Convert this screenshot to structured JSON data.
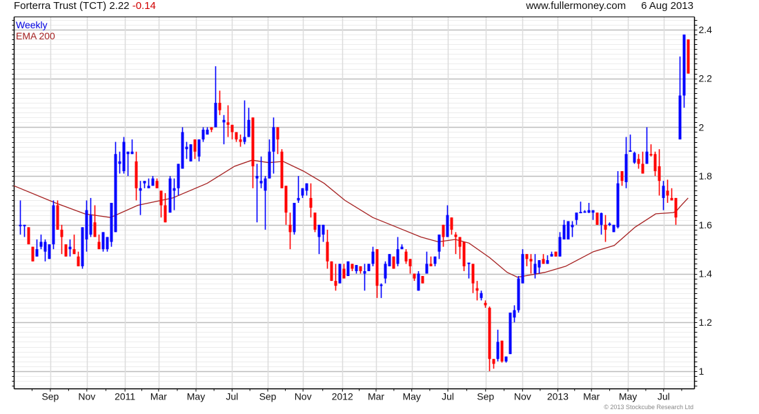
{
  "header": {
    "title": "Forterra Trust (TCT) 2.22",
    "change": "-0.14",
    "site": "www.fullermoney.com",
    "date": "6 Aug 2013"
  },
  "footer": "© 2013 Stockcube Research Ltd",
  "chart_data": {
    "type": "candlestick",
    "title": "Forterra Trust (TCT)",
    "legend": [
      {
        "name": "Weekly",
        "color": "#0000e0"
      },
      {
        "name": "EMA 200",
        "color": "#a52020"
      }
    ],
    "legend_placement": "top-left",
    "colors": {
      "up": "#0000ff",
      "down": "#ff0000",
      "ema": "#a52020"
    },
    "ylim": [
      0.93,
      2.45
    ],
    "yticks": [
      "1",
      "1.2",
      "1.4",
      "1.6",
      "1.8",
      "2",
      "2.2",
      "2.4"
    ],
    "ytick_values": [
      1,
      1.2,
      1.4,
      1.6,
      1.8,
      2,
      2.2,
      2.4
    ],
    "xlim": [
      -1.5,
      162
    ],
    "xticks": [
      {
        "label": "Sep",
        "week": 7.3
      },
      {
        "label": "Nov",
        "week": 16.1
      },
      {
        "label": "2011",
        "week": 25.3
      },
      {
        "label": "Mar",
        "week": 33.4
      },
      {
        "label": "May",
        "week": 42.4
      },
      {
        "label": "Jul",
        "week": 51.1
      },
      {
        "label": "Sep",
        "week": 59.7
      },
      {
        "label": "Nov",
        "week": 68.2
      },
      {
        "label": "2012",
        "week": 77.7
      },
      {
        "label": "Mar",
        "week": 85.8
      },
      {
        "label": "May",
        "week": 94.4
      },
      {
        "label": "Jul",
        "week": 103.1
      },
      {
        "label": "Sep",
        "week": 112.2
      },
      {
        "label": "Nov",
        "week": 121.1
      },
      {
        "label": "2013",
        "week": 129.6
      },
      {
        "label": "Mar",
        "week": 137.7
      },
      {
        "label": "May",
        "week": 146.5
      },
      {
        "label": "Jul",
        "week": 155.1
      }
    ],
    "ohlc_columns": [
      "open",
      "high",
      "low",
      "close"
    ],
    "candles": [
      [
        1.6,
        1.7,
        1.56,
        1.6
      ],
      [
        1.6,
        1.6,
        1.55,
        1.6
      ],
      [
        1.59,
        1.59,
        1.52,
        1.52
      ],
      [
        1.51,
        1.51,
        1.45,
        1.45
      ],
      [
        1.47,
        1.54,
        1.47,
        1.5
      ],
      [
        1.51,
        1.56,
        1.5,
        1.53
      ],
      [
        1.49,
        1.54,
        1.45,
        1.53
      ],
      [
        1.46,
        1.52,
        1.46,
        1.52
      ],
      [
        1.52,
        1.7,
        1.5,
        1.68
      ],
      [
        1.68,
        1.7,
        1.58,
        1.58
      ],
      [
        1.58,
        1.6,
        1.48,
        1.55
      ],
      [
        1.52,
        1.52,
        1.47,
        1.47
      ],
      [
        1.5,
        1.54,
        1.47,
        1.51
      ],
      [
        1.5,
        1.56,
        1.48,
        1.48
      ],
      [
        1.47,
        1.49,
        1.43,
        1.43
      ],
      [
        1.43,
        1.59,
        1.42,
        1.59
      ],
      [
        1.54,
        1.7,
        1.49,
        1.66
      ],
      [
        1.56,
        1.71,
        1.55,
        1.64
      ],
      [
        1.61,
        1.68,
        1.55,
        1.55
      ],
      [
        1.53,
        1.56,
        1.5,
        1.5
      ],
      [
        1.5,
        1.57,
        1.49,
        1.57
      ],
      [
        1.5,
        1.55,
        1.49,
        1.55
      ],
      [
        1.53,
        1.69,
        1.51,
        1.69
      ],
      [
        1.57,
        1.94,
        1.57,
        1.89
      ],
      [
        1.85,
        1.9,
        1.81,
        1.86
      ],
      [
        1.82,
        1.96,
        1.81,
        1.94
      ],
      [
        1.89,
        1.9,
        1.8,
        1.9
      ],
      [
        1.89,
        1.95,
        1.89,
        1.9
      ],
      [
        1.86,
        1.9,
        1.7,
        1.75
      ],
      [
        1.74,
        1.78,
        1.64,
        1.75
      ],
      [
        1.77,
        1.78,
        1.75,
        1.78
      ],
      [
        1.75,
        1.79,
        1.75,
        1.76
      ],
      [
        1.76,
        1.8,
        1.76,
        1.79
      ],
      [
        1.78,
        1.79,
        1.75,
        1.75
      ],
      [
        1.74,
        1.74,
        1.63,
        1.68
      ],
      [
        1.68,
        1.73,
        1.61,
        1.61
      ],
      [
        1.65,
        1.8,
        1.65,
        1.79
      ],
      [
        1.74,
        1.79,
        1.66,
        1.75
      ],
      [
        1.75,
        1.85,
        1.72,
        1.85
      ],
      [
        1.83,
        2.0,
        1.83,
        1.98
      ],
      [
        1.91,
        1.94,
        1.87,
        1.92
      ],
      [
        1.86,
        1.93,
        1.86,
        1.93
      ],
      [
        1.95,
        1.95,
        1.87,
        1.9
      ],
      [
        1.88,
        1.95,
        1.86,
        1.95
      ],
      [
        1.95,
        2.0,
        1.94,
        1.99
      ],
      [
        1.97,
        2.0,
        1.97,
        1.99
      ],
      [
        2.0,
        2.0,
        1.98,
        1.99
      ],
      [
        2.0,
        2.25,
        2.0,
        2.1
      ],
      [
        2.1,
        2.15,
        2.05,
        2.07
      ],
      [
        2.02,
        2.05,
        1.93,
        2.03
      ],
      [
        2.02,
        2.09,
        1.96,
        2.01
      ],
      [
        2.01,
        2.01,
        1.95,
        1.98
      ],
      [
        1.98,
        1.98,
        1.94,
        1.95
      ],
      [
        1.95,
        1.97,
        1.92,
        1.94
      ],
      [
        1.94,
        2.11,
        1.93,
        1.96
      ],
      [
        1.96,
        2.08,
        1.96,
        2.03
      ],
      [
        2.04,
        2.04,
        1.75,
        1.84
      ],
      [
        1.79,
        1.85,
        1.61,
        1.8
      ],
      [
        1.77,
        1.88,
        1.75,
        1.78
      ],
      [
        1.74,
        1.8,
        1.58,
        1.79
      ],
      [
        1.79,
        1.95,
        1.79,
        1.9
      ],
      [
        1.9,
        2.04,
        1.81,
        2.0
      ],
      [
        2.0,
        2.0,
        1.89,
        1.95
      ],
      [
        1.9,
        1.91,
        1.75,
        1.75
      ],
      [
        1.76,
        1.76,
        1.6,
        1.65
      ],
      [
        1.6,
        1.65,
        1.5,
        1.57
      ],
      [
        1.57,
        1.69,
        1.56,
        1.69
      ],
      [
        1.7,
        1.8,
        1.69,
        1.71
      ],
      [
        1.72,
        1.75,
        1.71,
        1.75
      ],
      [
        1.74,
        1.77,
        1.72,
        1.77
      ],
      [
        1.71,
        1.77,
        1.63,
        1.67
      ],
      [
        1.65,
        1.65,
        1.57,
        1.58
      ],
      [
        1.55,
        1.6,
        1.48,
        1.6
      ],
      [
        1.56,
        1.6,
        1.53,
        1.6
      ],
      [
        1.53,
        1.58,
        1.42,
        1.45
      ],
      [
        1.45,
        1.45,
        1.37,
        1.37
      ],
      [
        1.37,
        1.44,
        1.33,
        1.35
      ],
      [
        1.36,
        1.44,
        1.36,
        1.44
      ],
      [
        1.42,
        1.44,
        1.38,
        1.38
      ],
      [
        1.39,
        1.45,
        1.39,
        1.45
      ],
      [
        1.44,
        1.44,
        1.41,
        1.42
      ],
      [
        1.41,
        1.435,
        1.4,
        1.435
      ],
      [
        1.43,
        1.43,
        1.4,
        1.41
      ],
      [
        1.4,
        1.44,
        1.33,
        1.41
      ],
      [
        1.41,
        1.44,
        1.41,
        1.44
      ],
      [
        1.44,
        1.51,
        1.43,
        1.49
      ],
      [
        1.5,
        1.5,
        1.3,
        1.35
      ],
      [
        1.35,
        1.36,
        1.3,
        1.355
      ],
      [
        1.38,
        1.45,
        1.36,
        1.44
      ],
      [
        1.43,
        1.48,
        1.43,
        1.48
      ],
      [
        1.47,
        1.47,
        1.42,
        1.42
      ],
      [
        1.44,
        1.55,
        1.43,
        1.5
      ],
      [
        1.5,
        1.52,
        1.5,
        1.51
      ],
      [
        1.49,
        1.5,
        1.44,
        1.45
      ],
      [
        1.46,
        1.46,
        1.4,
        1.43
      ],
      [
        1.4,
        1.4,
        1.37,
        1.38
      ],
      [
        1.33,
        1.41,
        1.33,
        1.4
      ],
      [
        1.39,
        1.39,
        1.36,
        1.36
      ],
      [
        1.4,
        1.49,
        1.4,
        1.44
      ],
      [
        1.44,
        1.47,
        1.43,
        1.43
      ],
      [
        1.44,
        1.47,
        1.43,
        1.47
      ],
      [
        1.49,
        1.56,
        1.46,
        1.56
      ],
      [
        1.6,
        1.6,
        1.51,
        1.55
      ],
      [
        1.55,
        1.68,
        1.55,
        1.64
      ],
      [
        1.63,
        1.63,
        1.56,
        1.58
      ],
      [
        1.56,
        1.57,
        1.48,
        1.55
      ],
      [
        1.55,
        1.55,
        1.46,
        1.51
      ],
      [
        1.53,
        1.53,
        1.41,
        1.43
      ],
      [
        1.44,
        1.44,
        1.38,
        1.445
      ],
      [
        1.44,
        1.44,
        1.32,
        1.36
      ],
      [
        1.34,
        1.37,
        1.29,
        1.33
      ],
      [
        1.3,
        1.33,
        1.29,
        1.32
      ],
      [
        1.28,
        1.29,
        1.26,
        1.27
      ],
      [
        1.26,
        1.265,
        1.0,
        1.05
      ],
      [
        1.05,
        1.05,
        1.01,
        1.03
      ],
      [
        1.05,
        1.17,
        1.04,
        1.12
      ],
      [
        1.125,
        1.125,
        1.035,
        1.04
      ],
      [
        1.04,
        1.06,
        1.035,
        1.06
      ],
      [
        1.07,
        1.24,
        1.07,
        1.24
      ],
      [
        1.22,
        1.27,
        1.2,
        1.25
      ],
      [
        1.25,
        1.39,
        1.24,
        1.38
      ],
      [
        1.36,
        1.5,
        1.36,
        1.48
      ],
      [
        1.48,
        1.48,
        1.43,
        1.46
      ],
      [
        1.46,
        1.48,
        1.4,
        1.45
      ],
      [
        1.4,
        1.48,
        1.38,
        1.44
      ],
      [
        1.425,
        1.455,
        1.4,
        1.455
      ],
      [
        1.46,
        1.48,
        1.44,
        1.44
      ],
      [
        1.44,
        1.475,
        1.44,
        1.455
      ],
      [
        1.47,
        1.49,
        1.47,
        1.48
      ],
      [
        1.49,
        1.49,
        1.47,
        1.47
      ],
      [
        1.47,
        1.57,
        1.47,
        1.55
      ],
      [
        1.54,
        1.62,
        1.54,
        1.6
      ],
      [
        1.54,
        1.615,
        1.54,
        1.615
      ],
      [
        1.59,
        1.615,
        1.55,
        1.6
      ],
      [
        1.62,
        1.65,
        1.6,
        1.65
      ],
      [
        1.648,
        1.695,
        1.648,
        1.653
      ],
      [
        1.65,
        1.66,
        1.65,
        1.655
      ],
      [
        1.65,
        1.69,
        1.648,
        1.66
      ],
      [
        1.65,
        1.66,
        1.62,
        1.66
      ],
      [
        1.65,
        1.65,
        1.6,
        1.6
      ],
      [
        1.6,
        1.65,
        1.56,
        1.648
      ],
      [
        1.6,
        1.64,
        1.53,
        1.58
      ],
      [
        1.6,
        1.61,
        1.595,
        1.605
      ],
      [
        1.57,
        1.6,
        1.57,
        1.6
      ],
      [
        1.59,
        1.82,
        1.585,
        1.77
      ],
      [
        1.82,
        1.82,
        1.76,
        1.78
      ],
      [
        1.775,
        1.96,
        1.75,
        1.89
      ],
      [
        1.9,
        1.97,
        1.9,
        1.905
      ],
      [
        1.855,
        1.9,
        1.85,
        1.895
      ],
      [
        1.87,
        1.89,
        1.83,
        1.85
      ],
      [
        1.85,
        1.9,
        1.81,
        1.81
      ],
      [
        1.85,
        2.0,
        1.85,
        1.9
      ],
      [
        1.89,
        1.93,
        1.88,
        1.885
      ],
      [
        1.89,
        1.9,
        1.8,
        1.82
      ],
      [
        1.84,
        1.91,
        1.72,
        1.78
      ],
      [
        1.71,
        1.78,
        1.66,
        1.76
      ],
      [
        1.74,
        1.785,
        1.69,
        1.72
      ],
      [
        1.71,
        1.75,
        1.7,
        1.7
      ],
      [
        1.71,
        1.71,
        1.6,
        1.63
      ],
      [
        1.95,
        2.29,
        1.95,
        2.13
      ],
      [
        2.13,
        2.38,
        2.08,
        2.38
      ],
      [
        2.36,
        2.36,
        2.22,
        2.22
      ]
    ],
    "ema200": [
      [
        -1.5,
        1.76
      ],
      [
        8.5,
        1.69
      ],
      [
        15.6,
        1.645
      ],
      [
        21.8,
        1.63
      ],
      [
        28.4,
        1.68
      ],
      [
        36.8,
        1.71
      ],
      [
        45.1,
        1.77
      ],
      [
        51.7,
        1.84
      ],
      [
        55.9,
        1.865
      ],
      [
        60.0,
        1.855
      ],
      [
        63.4,
        1.86
      ],
      [
        68.3,
        1.82
      ],
      [
        73.3,
        1.77
      ],
      [
        78.3,
        1.7
      ],
      [
        85.0,
        1.63
      ],
      [
        90.8,
        1.59
      ],
      [
        96.6,
        1.55
      ],
      [
        100.8,
        1.53
      ],
      [
        104.9,
        1.54
      ],
      [
        108.2,
        1.525
      ],
      [
        113.2,
        1.465
      ],
      [
        117.4,
        1.405
      ],
      [
        119.9,
        1.385
      ],
      [
        126.5,
        1.405
      ],
      [
        131.5,
        1.43
      ],
      [
        138.2,
        1.49
      ],
      [
        143.2,
        1.515
      ],
      [
        148.2,
        1.59
      ],
      [
        153.2,
        1.645
      ],
      [
        157.4,
        1.65
      ],
      [
        158.1,
        1.655
      ],
      [
        159.1,
        1.675
      ],
      [
        161.0,
        1.71
      ]
    ]
  }
}
